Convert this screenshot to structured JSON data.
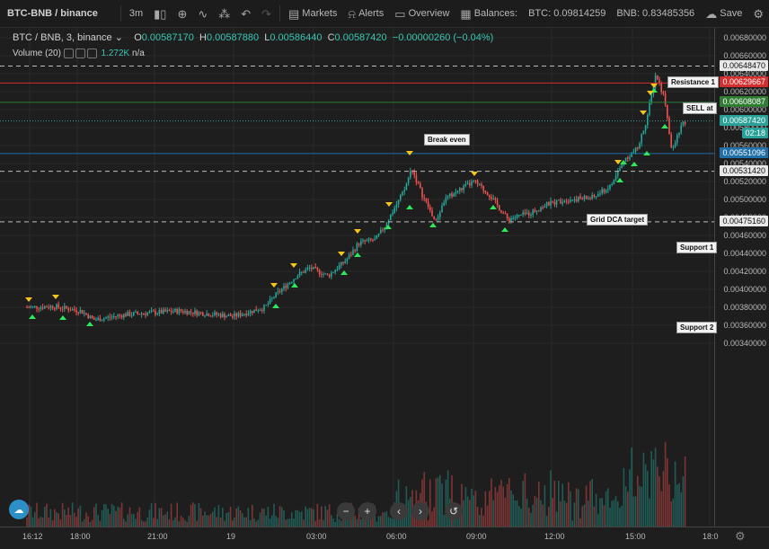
{
  "toolbar": {
    "symbol": "BTC-BNB / binance",
    "interval": "3m",
    "markets_label": "Markets",
    "alerts_label": "Alerts",
    "overview_label": "Overview",
    "balances_label": "Balances:",
    "btc_balance": "BTC: 0.09814259",
    "bnb_balance": "BNB: 0.83485356",
    "save_label": "Save"
  },
  "legend": {
    "symbol": "BTC / BNB, 3, binance",
    "open_label": "O",
    "open": "0.00587170",
    "high_label": "H",
    "high": "0.00587880",
    "low_label": "L",
    "low": "0.00586440",
    "close_label": "C",
    "close": "0.00587420",
    "change": "−0.00000260 (−0.04%)"
  },
  "volume": {
    "label": "Volume (20)",
    "value": "1.272K",
    "na": "n/a"
  },
  "y_ticks": [
    "0.00680000",
    "0.00660000",
    "0.00640000",
    "0.00620000",
    "0.00600000",
    "0.00580000",
    "0.00560000",
    "0.00540000",
    "0.00520000",
    "0.00500000",
    "0.00480000",
    "0.00460000",
    "0.00440000",
    "0.00420000",
    "0.00400000",
    "0.00380000",
    "0.00360000",
    "0.00340000"
  ],
  "x_ticks": [
    "16:12",
    "18:00",
    "21:00",
    "19",
    "03:00",
    "06:00",
    "09:00",
    "12:00",
    "15:00",
    "18:0"
  ],
  "levels": {
    "resistance": {
      "label": "Resistance 1",
      "value": "0.00648470"
    },
    "sell": {
      "label": "SELL at",
      "value": "0.00629667"
    },
    "breakeven": {
      "label": "Break even",
      "value": "0.00608087"
    },
    "current": {
      "value": "0.00587420",
      "countdown": "02:18"
    },
    "grid": {
      "label": "Grid DCA target",
      "value": "0.00551096"
    },
    "support1": {
      "label": "Support 1",
      "value": "0.00531420"
    },
    "support2": {
      "label": "Support 2",
      "value": "0.00475160"
    }
  },
  "colors": {
    "up": "#26a69a",
    "down": "#ef5350",
    "sell": "#d32f2f",
    "breakeven": "#2e7d32",
    "grid": "#1f6fa8",
    "current": "#2aa198"
  },
  "nav": {
    "zoom_out": "−",
    "zoom_in": "+",
    "back": "‹",
    "forward": "›",
    "reset": "↺"
  },
  "chart_data": {
    "type": "candlestick",
    "x": [
      "16:12",
      "18:00",
      "21:00",
      "19",
      "03:00",
      "06:00",
      "09:00",
      "12:00",
      "15:00",
      "18:0"
    ],
    "close": [
      0.0038,
      0.00375,
      0.00375,
      0.00378,
      0.00415,
      0.0054,
      0.00512,
      0.00498,
      0.0056,
      0.00587
    ],
    "ylim": [
      0.0034,
      0.0068
    ]
  }
}
